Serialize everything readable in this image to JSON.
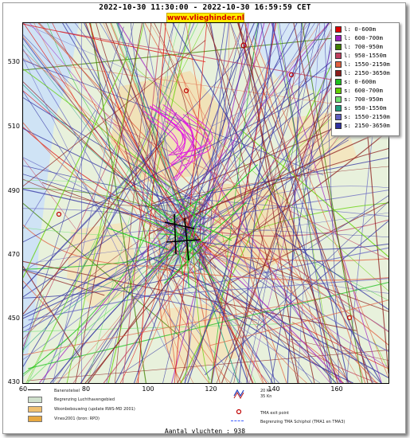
{
  "header": {
    "time_range": "2022-10-30 11:30:00 - 2022-10-30 16:59:59 CET",
    "site": "www.vlieghinder.nl"
  },
  "axes": {
    "y_ticks": [
      "530",
      "510",
      "490",
      "470",
      "450",
      "430"
    ],
    "x_ticks": [
      "60",
      "80",
      "100",
      "120",
      "140",
      "160"
    ]
  },
  "legend": [
    {
      "label": "l: 0-600m",
      "color": "#e00000"
    },
    {
      "label": "l: 600-700m",
      "color": "#a020c0"
    },
    {
      "label": "l: 700-950m",
      "color": "#408000"
    },
    {
      "label": "l: 950-1550m",
      "color": "#c04060"
    },
    {
      "label": "l: 1550-2150m",
      "color": "#e06040"
    },
    {
      "label": "l: 2150-3650m",
      "color": "#8b1c1c"
    },
    {
      "label": "s: 0-600m",
      "color": "#20c020"
    },
    {
      "label": "s: 600-700m",
      "color": "#60d000"
    },
    {
      "label": "s: 700-950m",
      "color": "#70e070"
    },
    {
      "label": "s: 950-1550m",
      "color": "#20a080"
    },
    {
      "label": "s: 1550-2150m",
      "color": "#6060c0"
    },
    {
      "label": "s: 2150-3650m",
      "color": "#3030a0"
    }
  ],
  "map_legend": {
    "runway": "Banenstelsel",
    "airport_boundary": "Begrenzing Luchthavengebied",
    "housing": "Woonbebouwing (update RWS-MD 2001)",
    "vinex": "Vinex2001 (bron: RPD)",
    "wind_label_1": "20 Kn",
    "wind_label_2": "35 Kn",
    "tma_exit": "TMA exit point",
    "tma_boundary": "Begrenzing TMA Schiphol  (TMA1 en TMA3)"
  },
  "footer": {
    "flights": "Aantal vluchten : 938"
  },
  "colors": {
    "background": "#e9f2dd",
    "badge": "#ffec00",
    "badge_text": "#d40000"
  }
}
